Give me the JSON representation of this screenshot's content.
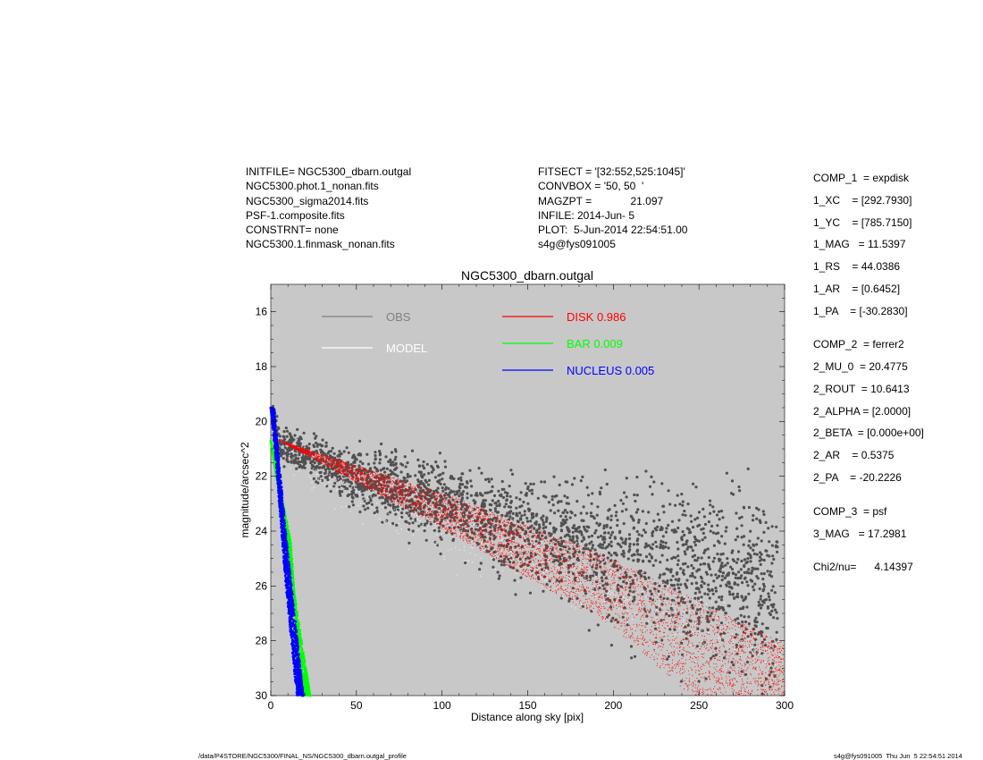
{
  "header": {
    "left_lines": [
      "INITFILE= NGC5300_dbarn.outgal",
      "NGC5300.phot.1_nonan.fits",
      "NGC5300_sigma2014.fits",
      "PSF-1.composite.fits",
      "CONSTRNT= none",
      "NGC5300.1.finmask_nonan.fits"
    ],
    "mid_lines": [
      "FITSECT = '[32:552,525:1045]'",
      "CONVBOX = '50, 50  '",
      "MAGZPT =             21.097",
      "INFILE: 2014-Jun- 5",
      "PLOT:  5-Jun-2014 22:54:51.00",
      "s4g@fys091005"
    ]
  },
  "params": [
    "COMP_1  = expdisk",
    "1_XC    = [292.7930]",
    "1_YC    = [785.7150]",
    "1_MAG   = 11.5397",
    "1_RS    = 44.0386",
    "1_AR    = [0.6452]",
    "1_PA    = [-30.2830]",
    "COMP_2  = ferrer2",
    "2_MU_0  = 20.4775",
    "2_ROUT  = 10.6413",
    "2_ALPHA = [2.0000]",
    "2_BETA  = [0.000e+00]",
    "2_AR    = 0.5375",
    "2_PA    = -20.2226",
    "COMP_3  = psf",
    "3_MAG   = 17.2981",
    "Chi2/nu=      4.14397"
  ],
  "footer": {
    "left": "/data/P4STORE/NGC5300/FINAL_NS/NGC5300_dbarn.outgal_profile",
    "right": "s4g@fys091005  Thu Jun  5 22:54:51 2014"
  },
  "colors": {
    "panel_bg": "#c8c8c8",
    "obs": "#505050",
    "obs_legend": "#808080",
    "model": "#ffffff",
    "disk": "#ff0000",
    "bar": "#00ff00",
    "nucleus": "#0000ff"
  },
  "chart_data": {
    "type": "scatter",
    "title": "NGC5300_dbarn.outgal",
    "xlabel": "Distance along sky [pix]",
    "ylabel": "magnitude/arcsec^2",
    "xlim": [
      0,
      300
    ],
    "ylim": [
      30,
      15
    ],
    "y_inverted": true,
    "xticks": [
      "0",
      "50",
      "100",
      "150",
      "200",
      "250",
      "300"
    ],
    "yticks": [
      "16",
      "18",
      "20",
      "22",
      "24",
      "26",
      "28",
      "30"
    ],
    "grid": false,
    "legend_position": "top",
    "series": [
      {
        "name": "OBS",
        "label_text": "OBS",
        "color": "#808080",
        "center": [
          [
            0,
            19.6
          ],
          [
            5,
            20.8
          ],
          [
            50,
            22.0
          ],
          [
            100,
            23.0
          ],
          [
            150,
            24.0
          ],
          [
            200,
            24.8
          ],
          [
            250,
            25.7
          ],
          [
            290,
            26.3
          ]
        ],
        "spread": [
          [
            0,
            0.4
          ],
          [
            5,
            0.6
          ],
          [
            50,
            1.0
          ],
          [
            100,
            1.4
          ],
          [
            150,
            1.8
          ],
          [
            200,
            2.4
          ],
          [
            260,
            3.2
          ],
          [
            290,
            3.6
          ]
        ]
      },
      {
        "name": "MODEL",
        "label_text": "MODEL",
        "color": "#ffffff",
        "center": [
          [
            3,
            20.3
          ],
          [
            10,
            21.1
          ],
          [
            50,
            22.7
          ],
          [
            150,
            25.1
          ],
          [
            250,
            27.4
          ],
          [
            300,
            28.6
          ]
        ]
      },
      {
        "name": "DISK",
        "label_text": "DISK  0.986",
        "color": "#ff0000",
        "upper": [
          [
            5,
            20.7
          ],
          [
            100,
            22.6
          ],
          [
            200,
            25.0
          ],
          [
            300,
            28.1
          ]
        ],
        "lower": [
          [
            5,
            20.7
          ],
          [
            100,
            23.9
          ],
          [
            200,
            27.5
          ],
          [
            245,
            30.0
          ]
        ]
      },
      {
        "name": "BAR",
        "label_text": "BAR  0.009",
        "color": "#00ff00",
        "upper": [
          [
            0,
            20.7
          ],
          [
            23,
            30.0
          ]
        ],
        "lower": [
          [
            0,
            20.7
          ],
          [
            12,
            24.5
          ],
          [
            17,
            30.0
          ]
        ]
      },
      {
        "name": "NUCLEUS",
        "label_text": "NUCLEUS  0.005",
        "color": "#0000ff",
        "upper": [
          [
            0,
            19.5
          ],
          [
            2,
            19.5
          ],
          [
            8,
            23.5
          ],
          [
            19,
            30.0
          ]
        ],
        "lower": [
          [
            0,
            19.5
          ],
          [
            3,
            21.5
          ],
          [
            8,
            25.5
          ],
          [
            15,
            30.0
          ]
        ]
      }
    ]
  }
}
